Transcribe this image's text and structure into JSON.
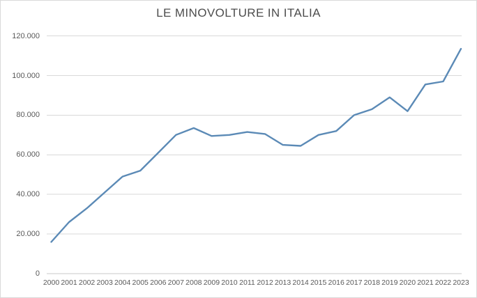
{
  "chart_data": {
    "type": "line",
    "title": "LE MINOVOLTURE IN ITALIA",
    "categories": [
      "2000",
      "2001",
      "2002",
      "2003",
      "2004",
      "2005",
      "2006",
      "2007",
      "2008",
      "2009",
      "2010",
      "2011",
      "2012",
      "2013",
      "2014",
      "2015",
      "2016",
      "2017",
      "2018",
      "2019",
      "2020",
      "2021",
      "2022",
      "2023"
    ],
    "values": [
      16000,
      26000,
      33000,
      41000,
      49000,
      52000,
      61000,
      70000,
      73500,
      69500,
      70000,
      71500,
      70500,
      65000,
      64500,
      70000,
      72000,
      80000,
      83000,
      89000,
      82000,
      95500,
      97000,
      113500
    ],
    "xlabel": "",
    "ylabel": "",
    "ylim": [
      0,
      120000
    ],
    "ytick_step": 20000,
    "ytick_labels": [
      "0",
      "20.000",
      "40.000",
      "60.000",
      "80.000",
      "100.000",
      "120.000"
    ],
    "grid": true,
    "legend": false,
    "marker": false,
    "colors": {
      "line": "#5b8ab6",
      "grid": "#d9d9d9",
      "axis": "#c9c9c9",
      "tick_text": "#595959",
      "title_text": "#4d4d4d",
      "background": "#ffffff",
      "border": "#d9d9d9"
    }
  }
}
